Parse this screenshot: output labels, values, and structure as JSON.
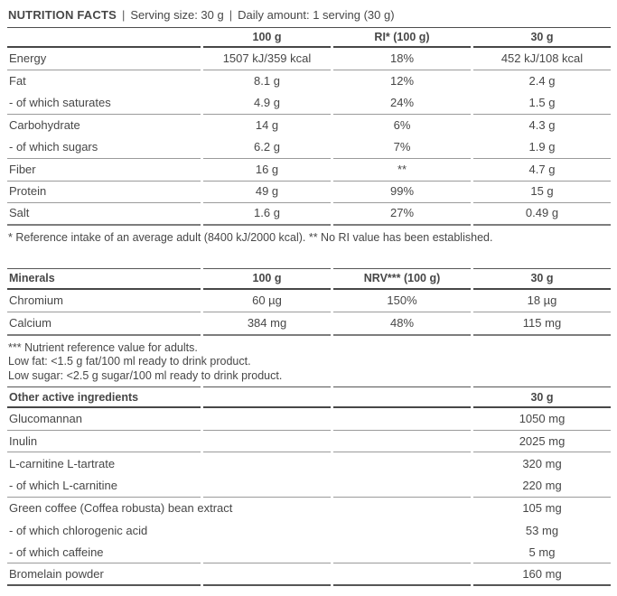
{
  "colors": {
    "text": "#474747",
    "line_thin": "#9b9b9b",
    "line_thick": "#474747"
  },
  "header": {
    "title": "NUTRITION FACTS",
    "separator": "|",
    "serving_size": "Serving size: 30 g",
    "daily_amount": "Daily amount: 1 serving (30 g)"
  },
  "nutrition_table": {
    "columns": [
      "",
      "100 g",
      "RI* (100 g)",
      "30 g"
    ],
    "rows": [
      {
        "label": "Energy",
        "per100": "1507 kJ/359 kcal",
        "ri": "18%",
        "per30": "452 kJ/108 kcal",
        "line": "thin"
      },
      {
        "label": "Fat",
        "per100": "8.1 g",
        "ri": "12%",
        "per30": "2.4 g",
        "line": "none"
      },
      {
        "label": "- of which saturates",
        "per100": "4.9 g",
        "ri": "24%",
        "per30": "1.5 g",
        "line": "thin"
      },
      {
        "label": "Carbohydrate",
        "per100": "14 g",
        "ri": "6%",
        "per30": "4.3 g",
        "line": "none"
      },
      {
        "label": "- of which sugars",
        "per100": "6.2 g",
        "ri": "7%",
        "per30": "1.9 g",
        "line": "thin"
      },
      {
        "label": "Fiber",
        "per100": "16 g",
        "ri": "**",
        "per30": "4.7 g",
        "line": "thin"
      },
      {
        "label": "Protein",
        "per100": "49 g",
        "ri": "99%",
        "per30": "15 g",
        "line": "thin"
      },
      {
        "label": "Salt",
        "per100": "1.6 g",
        "ri": "27%",
        "per30": "0.49 g",
        "line": "end"
      }
    ],
    "footnote": "* Reference intake of an average adult (8400 kJ/2000 kcal). ** No RI value has been established."
  },
  "minerals_table": {
    "columns": [
      "Minerals",
      "100 g",
      "NRV*** (100 g)",
      "30 g"
    ],
    "rows": [
      {
        "label": "Chromium",
        "per100": "60 µg",
        "ri": "150%",
        "per30": "18 µg",
        "line": "thin"
      },
      {
        "label": "Calcium",
        "per100": "384 mg",
        "ri": "48%",
        "per30": "115 mg",
        "line": "end"
      }
    ],
    "footnotes": [
      "*** Nutrient reference value for adults.",
      "Low fat: <1.5 g fat/100 ml ready to drink product.",
      "Low sugar: <2.5 g sugar/100 ml ready to drink product."
    ]
  },
  "ingredients_table": {
    "header_label": "Other active ingredients",
    "header_value": "30 g",
    "rows": [
      {
        "label": "Glucomannan",
        "value": "1050 mg",
        "line": "thin"
      },
      {
        "label": "Inulin",
        "value": "2025 mg",
        "line": "thin"
      },
      {
        "label": "L-carnitine L-tartrate",
        "value": "320 mg",
        "line": "none"
      },
      {
        "label": "- of which L-carnitine",
        "value": "220 mg",
        "line": "thin"
      },
      {
        "label": "Green coffee (Coffea robusta) bean extract",
        "value": "105 mg",
        "line": "none"
      },
      {
        "label": "- of which chlorogenic acid",
        "value": "53 mg",
        "line": "none"
      },
      {
        "label": "- of which caffeine",
        "value": "5 mg",
        "line": "thin"
      },
      {
        "label": "Bromelain powder",
        "value": "160 mg",
        "line": "final"
      }
    ]
  }
}
